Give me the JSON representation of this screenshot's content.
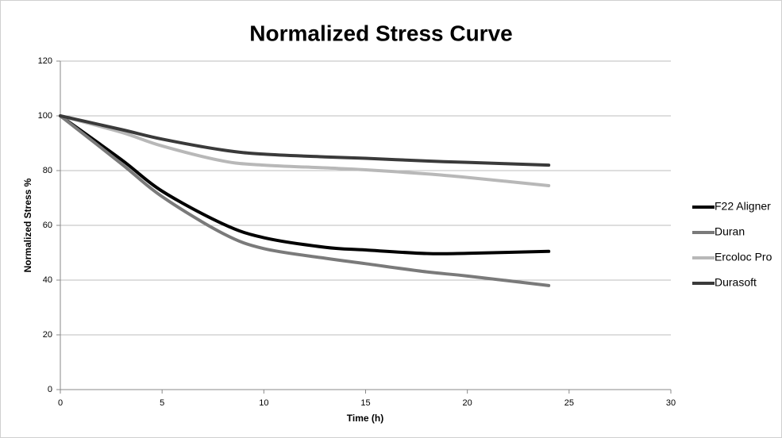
{
  "chart_data": {
    "type": "line",
    "title": "Normalized Stress Curve",
    "x_label": "Time (h)",
    "y_label": "Normalized Stress %",
    "x": [
      0,
      3,
      5,
      8,
      10,
      13,
      15,
      18,
      20,
      24
    ],
    "series": [
      {
        "name": "F22 Aligner",
        "color": "#000000",
        "values": [
          100,
          84,
          72.5,
          60.5,
          55.5,
          52,
          51,
          49.7,
          49.8,
          50.5
        ]
      },
      {
        "name": "Duran",
        "color": "#7a7a7a",
        "values": [
          100,
          82.5,
          70.5,
          57,
          51.5,
          48,
          46,
          43,
          41.5,
          38
        ]
      },
      {
        "name": "Ercoloc Pro",
        "color": "#b8b8b8",
        "values": [
          100,
          94,
          89,
          83.5,
          82,
          81,
          80.3,
          78.8,
          77.5,
          74.5
        ]
      },
      {
        "name": "Durasoft",
        "color": "#3a3a3a",
        "values": [
          100,
          95,
          91.5,
          87.5,
          86,
          85,
          84.5,
          83.5,
          83,
          82
        ]
      }
    ],
    "xlim": [
      0,
      30
    ],
    "xticks": [
      0,
      5,
      10,
      15,
      20,
      25,
      30
    ],
    "ylim": [
      0,
      120
    ],
    "yticks": [
      0,
      20,
      40,
      60,
      80,
      100,
      120
    ],
    "grid": true,
    "legend": "right"
  }
}
